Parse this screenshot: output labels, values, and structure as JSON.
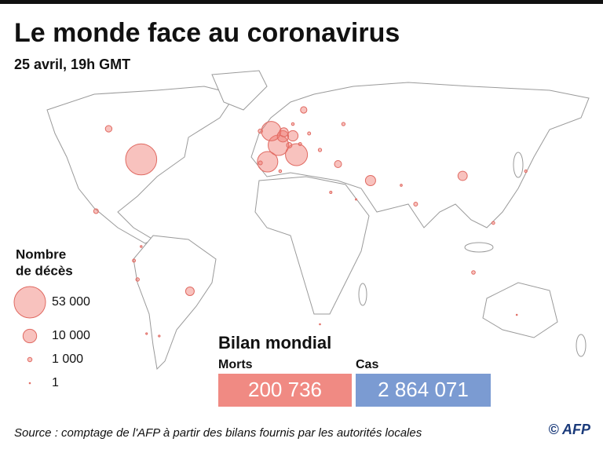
{
  "header": {
    "title": "Le monde face au coronavirus",
    "subtitle": "25 avril, 19h GMT"
  },
  "legend": {
    "title": [
      "Nombre",
      "de décès"
    ],
    "items": [
      {
        "value": 53000,
        "label": "53 000"
      },
      {
        "value": 10000,
        "label": "10 000"
      },
      {
        "value": 1000,
        "label": "1 000"
      },
      {
        "value": 1,
        "label": "1"
      }
    ]
  },
  "map": {
    "bubbles": [
      {
        "lon": -74,
        "lat": 41,
        "deaths": 52000
      },
      {
        "lon": 12,
        "lat": 43,
        "deaths": 26000
      },
      {
        "lon": -4,
        "lat": 40,
        "deaths": 22500
      },
      {
        "lon": 2,
        "lat": 47,
        "deaths": 22600
      },
      {
        "lon": -2,
        "lat": 53,
        "deaths": 20300
      },
      {
        "lon": 4.5,
        "lat": 50.8,
        "deaths": 6900
      },
      {
        "lon": 10,
        "lat": 51,
        "deaths": 5800
      },
      {
        "lon": 5,
        "lat": 52.5,
        "deaths": 4300
      },
      {
        "lon": 53,
        "lat": 32,
        "deaths": 5600
      },
      {
        "lon": 104,
        "lat": 34,
        "deaths": 4632
      },
      {
        "lon": -47,
        "lat": -15,
        "deaths": 4000
      },
      {
        "lon": 35,
        "lat": 39,
        "deaths": 2700
      },
      {
        "lon": -92,
        "lat": 54,
        "deaths": 2300
      },
      {
        "lon": 16,
        "lat": 62,
        "deaths": 2200
      },
      {
        "lon": 8,
        "lat": 47,
        "deaths": 1600
      },
      {
        "lon": -99,
        "lat": 19,
        "deaths": 1200
      },
      {
        "lon": -8,
        "lat": 53,
        "deaths": 1000
      },
      {
        "lon": -76,
        "lat": -10,
        "deaths": 650
      },
      {
        "lon": -78,
        "lat": -2,
        "deaths": 500
      },
      {
        "lon": 38,
        "lat": 56,
        "deaths": 600
      },
      {
        "lon": 78,
        "lat": 22,
        "deaths": 800
      },
      {
        "lon": -8,
        "lat": 39.5,
        "deaths": 850
      },
      {
        "lon": 110,
        "lat": -7,
        "deaths": 700
      },
      {
        "lon": 139,
        "lat": 36,
        "deaths": 350
      },
      {
        "lon": 31,
        "lat": 27,
        "deaths": 300
      },
      {
        "lon": 3,
        "lat": 36,
        "deaths": 400
      },
      {
        "lon": 25,
        "lat": 45,
        "deaths": 600
      },
      {
        "lon": 19,
        "lat": 52,
        "deaths": 500
      },
      {
        "lon": 14,
        "lat": 47.5,
        "deaths": 530
      },
      {
        "lon": 10,
        "lat": 56,
        "deaths": 400
      },
      {
        "lon": 121,
        "lat": 14,
        "deaths": 450
      },
      {
        "lon": 70,
        "lat": 30,
        "deaths": 230
      },
      {
        "lon": 45,
        "lat": 24,
        "deaths": 120
      },
      {
        "lon": -64,
        "lat": -34,
        "deaths": 180
      },
      {
        "lon": -71,
        "lat": -33,
        "deaths": 150
      },
      {
        "lon": -74,
        "lat": 4,
        "deaths": 200
      },
      {
        "lon": 25,
        "lat": -29,
        "deaths": 80
      },
      {
        "lon": 134,
        "lat": -25,
        "deaths": 80
      }
    ]
  },
  "summary": {
    "title": "Bilan mondial",
    "deaths_label": "Morts",
    "deaths": "200 736",
    "cases_label": "Cas",
    "cases": "2 864 071"
  },
  "footer": {
    "source": "Source : comptage de l'AFP à partir des bilans fournis par les autorités locales",
    "credit": "© AFP"
  }
}
